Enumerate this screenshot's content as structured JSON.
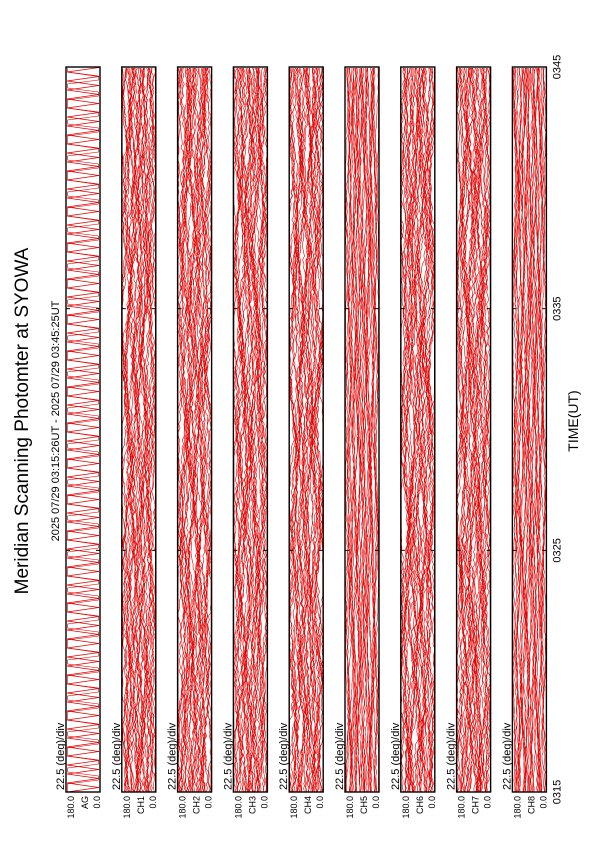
{
  "chart_data": {
    "type": "line",
    "title": "Meridian Scanning Photomter at SYOWA",
    "subtitle": "2025 07/29 03:15:26UT - 2025 07/29 03:45:25UT",
    "xlabel": "TIME(UT)",
    "x_ticks": [
      "0315",
      "0325",
      "0335",
      "0345"
    ],
    "x_range": [
      "0315",
      "0345"
    ],
    "scale_label": "22.5 (deg)/div",
    "y_ticks": [
      "0.0",
      "180.0"
    ],
    "panels": [
      {
        "channel": "AG",
        "top_label": "180.0",
        "bottom_label": "0.0"
      },
      {
        "channel": "CH1",
        "top_label": "180.0",
        "bottom_label": "0.0"
      },
      {
        "channel": "CH2",
        "top_label": "180.0",
        "bottom_label": "0.0"
      },
      {
        "channel": "CH3",
        "top_label": "180.0",
        "bottom_label": "0.0"
      },
      {
        "channel": "CH4",
        "top_label": "180.0",
        "bottom_label": "0.0"
      },
      {
        "channel": "CH5",
        "top_label": "180.0",
        "bottom_label": "0.0"
      },
      {
        "channel": "CH6",
        "top_label": "180.0",
        "bottom_label": "0.0"
      },
      {
        "channel": "CH7",
        "top_label": "180.0",
        "bottom_label": "0.0"
      },
      {
        "channel": "CH8",
        "top_label": "180.0",
        "bottom_label": "0.0"
      }
    ]
  },
  "colors": {
    "trace": "#e00000",
    "frame": "#000000"
  }
}
